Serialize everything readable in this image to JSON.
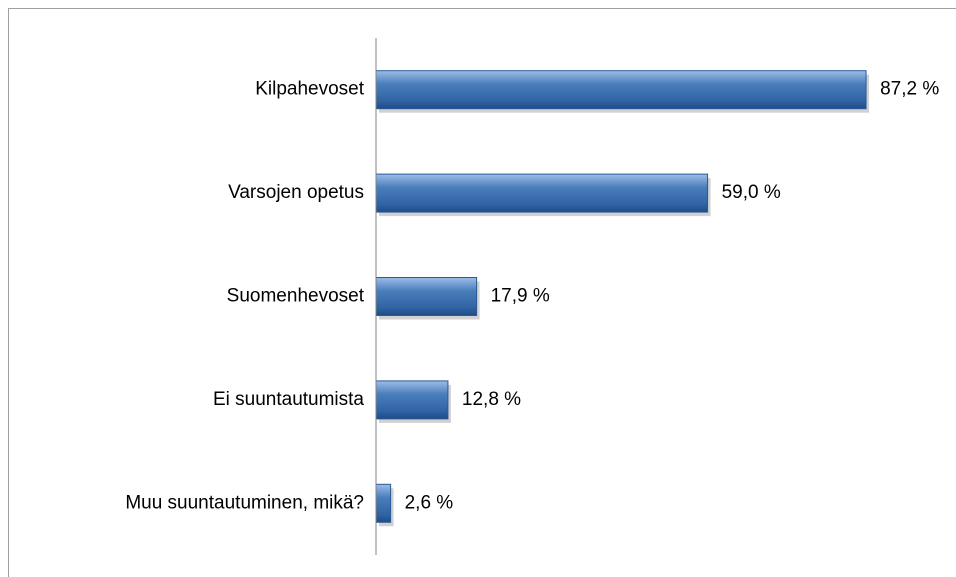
{
  "chart_data": {
    "type": "bar",
    "orientation": "horizontal",
    "categories": [
      "Kilpahevoset",
      "Varsojen opetus",
      "Suomenhevoset",
      "Ei suuntautumista",
      "Muu suuntautuminen, mikä?"
    ],
    "values": [
      87.2,
      59.0,
      17.9,
      12.8,
      2.6
    ],
    "value_labels": [
      "87,2 %",
      "59,0 %",
      "17,9 %",
      "12,8 %",
      "2,6 %"
    ],
    "color": "#4a7ebb",
    "xlim": [
      0,
      100
    ]
  }
}
